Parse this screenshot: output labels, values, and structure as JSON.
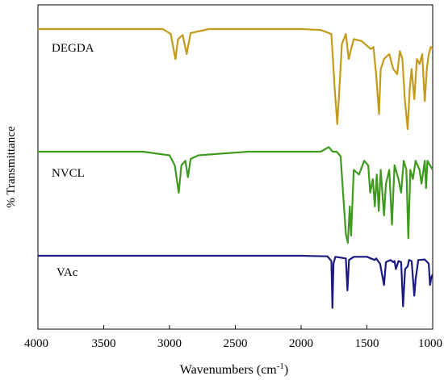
{
  "chart_data": {
    "type": "line",
    "xlabel": "Wavenumbers (cm",
    "xlabel_sup": "-1",
    "xlabel_tail": ")",
    "ylabel": "% Transmittance",
    "xlim": [
      4000,
      1000
    ],
    "x_reversed": true,
    "grid": false,
    "legend": "inline labels",
    "xticks": [
      "4000",
      "3500",
      "3000",
      "2500",
      "2000",
      "1500",
      "1000"
    ],
    "series": [
      {
        "name": "DEGDA",
        "color": "#c49a1a",
        "baseline": 1,
        "points": [
          [
            4000,
            1.0
          ],
          [
            3600,
            1.0
          ],
          [
            3300,
            1.0
          ],
          [
            3050,
            1.0
          ],
          [
            2990,
            0.95
          ],
          [
            2955,
            0.7
          ],
          [
            2935,
            0.9
          ],
          [
            2900,
            0.94
          ],
          [
            2870,
            0.75
          ],
          [
            2840,
            0.96
          ],
          [
            2700,
            1.0
          ],
          [
            2400,
            1.0
          ],
          [
            2300,
            1.0
          ],
          [
            2000,
            1.0
          ],
          [
            1850,
            0.99
          ],
          [
            1770,
            0.95
          ],
          [
            1745,
            0.4
          ],
          [
            1725,
            0.05
          ],
          [
            1705,
            0.5
          ],
          [
            1690,
            0.85
          ],
          [
            1660,
            0.95
          ],
          [
            1638,
            0.7
          ],
          [
            1620,
            0.8
          ],
          [
            1600,
            0.9
          ],
          [
            1540,
            0.88
          ],
          [
            1470,
            0.8
          ],
          [
            1450,
            0.82
          ],
          [
            1430,
            0.55
          ],
          [
            1408,
            0.15
          ],
          [
            1395,
            0.6
          ],
          [
            1370,
            0.7
          ],
          [
            1330,
            0.75
          ],
          [
            1300,
            0.6
          ],
          [
            1270,
            0.55
          ],
          [
            1250,
            0.78
          ],
          [
            1230,
            0.7
          ],
          [
            1212,
            0.3
          ],
          [
            1190,
            0.0
          ],
          [
            1175,
            0.4
          ],
          [
            1160,
            0.6
          ],
          [
            1140,
            0.3
          ],
          [
            1120,
            0.7
          ],
          [
            1100,
            0.65
          ],
          [
            1080,
            0.75
          ],
          [
            1060,
            0.28
          ],
          [
            1045,
            0.6
          ],
          [
            1030,
            0.75
          ],
          [
            1015,
            0.82
          ],
          [
            1000,
            0.8
          ]
        ]
      },
      {
        "name": "NVCL",
        "color": "#3e9a1c",
        "baseline": 1,
        "points": [
          [
            4000,
            1.0
          ],
          [
            3700,
            1.0
          ],
          [
            3500,
            1.0
          ],
          [
            3200,
            1.0
          ],
          [
            3100,
            0.98
          ],
          [
            3000,
            0.96
          ],
          [
            2960,
            0.85
          ],
          [
            2930,
            0.55
          ],
          [
            2910,
            0.85
          ],
          [
            2880,
            0.9
          ],
          [
            2860,
            0.72
          ],
          [
            2840,
            0.92
          ],
          [
            2780,
            0.96
          ],
          [
            2600,
            0.98
          ],
          [
            2400,
            1.0
          ],
          [
            2000,
            1.0
          ],
          [
            1850,
            1.0
          ],
          [
            1790,
            1.05
          ],
          [
            1760,
            1.0
          ],
          [
            1730,
            1.0
          ],
          [
            1700,
            0.95
          ],
          [
            1660,
            0.1
          ],
          [
            1645,
            0.0
          ],
          [
            1630,
            0.4
          ],
          [
            1620,
            0.08
          ],
          [
            1600,
            0.8
          ],
          [
            1560,
            0.75
          ],
          [
            1520,
            0.9
          ],
          [
            1490,
            0.85
          ],
          [
            1475,
            0.55
          ],
          [
            1455,
            0.7
          ],
          [
            1440,
            0.4
          ],
          [
            1425,
            0.75
          ],
          [
            1410,
            0.35
          ],
          [
            1395,
            0.8
          ],
          [
            1370,
            0.3
          ],
          [
            1355,
            0.65
          ],
          [
            1330,
            0.8
          ],
          [
            1310,
            0.2
          ],
          [
            1290,
            0.85
          ],
          [
            1260,
            0.7
          ],
          [
            1240,
            0.55
          ],
          [
            1220,
            0.9
          ],
          [
            1200,
            0.8
          ],
          [
            1185,
            0.05
          ],
          [
            1170,
            0.8
          ],
          [
            1150,
            0.7
          ],
          [
            1130,
            0.9
          ],
          [
            1100,
            0.8
          ],
          [
            1085,
            0.65
          ],
          [
            1060,
            0.9
          ],
          [
            1050,
            0.6
          ],
          [
            1040,
            0.9
          ],
          [
            1020,
            0.85
          ],
          [
            1000,
            0.8
          ]
        ]
      },
      {
        "name": "VAc",
        "color": "#1a1a80",
        "baseline": 1,
        "points": [
          [
            4000,
            1.0
          ],
          [
            3500,
            1.0
          ],
          [
            3100,
            1.0
          ],
          [
            3000,
            1.0
          ],
          [
            2000,
            1.0
          ],
          [
            1800,
            0.99
          ],
          [
            1770,
            0.9
          ],
          [
            1762,
            0.02
          ],
          [
            1754,
            0.85
          ],
          [
            1740,
            0.98
          ],
          [
            1660,
            0.95
          ],
          [
            1648,
            0.35
          ],
          [
            1636,
            0.92
          ],
          [
            1600,
            0.98
          ],
          [
            1500,
            0.98
          ],
          [
            1440,
            0.92
          ],
          [
            1430,
            0.95
          ],
          [
            1400,
            0.85
          ],
          [
            1370,
            0.45
          ],
          [
            1355,
            0.88
          ],
          [
            1320,
            0.92
          ],
          [
            1300,
            0.88
          ],
          [
            1290,
            0.9
          ],
          [
            1280,
            0.75
          ],
          [
            1260,
            0.9
          ],
          [
            1240,
            0.88
          ],
          [
            1225,
            0.05
          ],
          [
            1210,
            0.75
          ],
          [
            1190,
            0.8
          ],
          [
            1180,
            0.92
          ],
          [
            1160,
            0.9
          ],
          [
            1140,
            0.25
          ],
          [
            1130,
            0.55
          ],
          [
            1110,
            0.92
          ],
          [
            1060,
            0.93
          ],
          [
            1030,
            0.85
          ],
          [
            1020,
            0.45
          ],
          [
            1010,
            0.6
          ],
          [
            1000,
            0.65
          ]
        ]
      }
    ]
  }
}
